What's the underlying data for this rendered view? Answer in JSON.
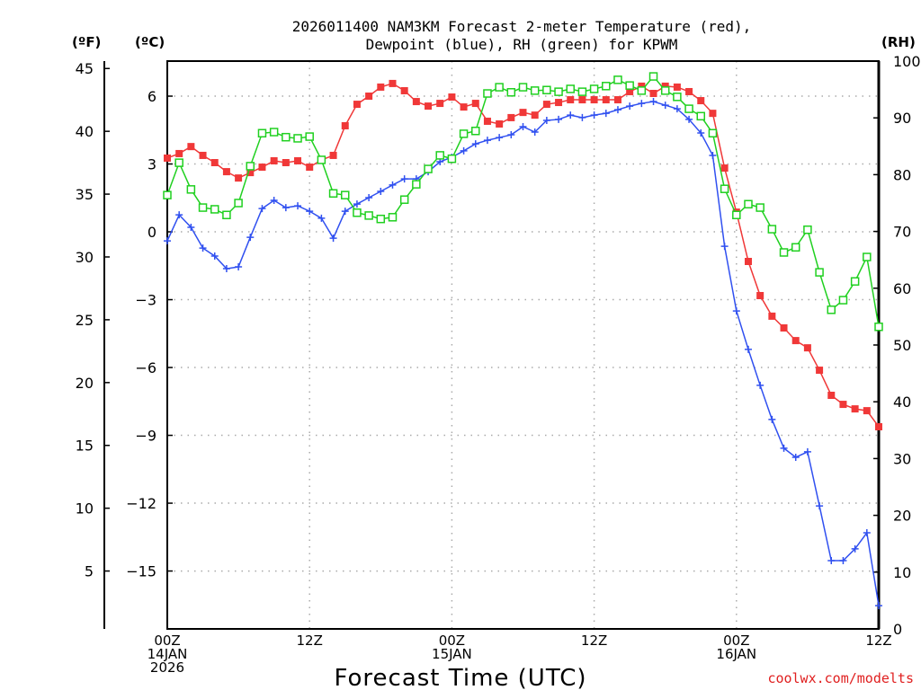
{
  "chart_data": {
    "type": "line",
    "title": [
      "2026011400 NAM3KM Forecast 2-meter Temperature (red),",
      "Dewpoint (blue), RH (green) for KPWM"
    ],
    "xlabel": "Forecast Time (UTC)",
    "units": {
      "fahrenheit": "(ºF)",
      "celsius": "(ºC)",
      "rh": "(RH)"
    },
    "x_hours": [
      0,
      1,
      2,
      3,
      4,
      5,
      6,
      7,
      8,
      9,
      10,
      11,
      12,
      13,
      14,
      15,
      16,
      17,
      18,
      19,
      20,
      21,
      22,
      23,
      24,
      25,
      26,
      27,
      28,
      29,
      30,
      31,
      32,
      33,
      34,
      35,
      36,
      37,
      38,
      39,
      40,
      41,
      42,
      43,
      44,
      45,
      46,
      47,
      48,
      49,
      50,
      51,
      52,
      53,
      54,
      55,
      56,
      57,
      58,
      59,
      60
    ],
    "xlim": [
      0,
      60
    ],
    "x_ticks": [
      {
        "hour": 0,
        "lines": [
          "00Z",
          "14JAN",
          "2026"
        ]
      },
      {
        "hour": 12,
        "lines": [
          "12Z"
        ]
      },
      {
        "hour": 24,
        "lines": [
          "00Z",
          "15JAN"
        ]
      },
      {
        "hour": 36,
        "lines": [
          "12Z"
        ]
      },
      {
        "hour": 48,
        "lines": [
          "00Z",
          "16JAN"
        ]
      },
      {
        "hour": 60,
        "lines": [
          "12Z"
        ]
      }
    ],
    "celsius_ticks": [
      "6",
      "3",
      "0",
      "−3",
      "−6",
      "−9",
      "−12",
      "−15"
    ],
    "celsius_tick_values": [
      6,
      3,
      0,
      -3,
      -6,
      -9,
      -12,
      -15
    ],
    "celsius_lim": [
      -17.56,
      7.55
    ],
    "fahrenheit_ticks": [
      "45",
      "40",
      "35",
      "30",
      "25",
      "20",
      "15",
      "10",
      "5"
    ],
    "fahrenheit_tick_values": [
      45,
      40,
      35,
      30,
      25,
      20,
      15,
      10,
      5
    ],
    "rh_ticks": [
      "100",
      "90",
      "80",
      "70",
      "60",
      "50",
      "40",
      "30",
      "20",
      "10",
      "0"
    ],
    "rh_tick_values": [
      100,
      90,
      80,
      70,
      60,
      50,
      40,
      30,
      20,
      10,
      0
    ],
    "rh_lim": [
      0,
      100
    ],
    "grid": true,
    "series": [
      {
        "name": "Temperature",
        "axis": "celsius",
        "color": "#f03838",
        "marker": "filled-square",
        "values": [
          3.26,
          3.46,
          3.77,
          3.38,
          3.06,
          2.66,
          2.38,
          2.62,
          2.86,
          3.14,
          3.06,
          3.14,
          2.86,
          3.18,
          3.38,
          4.69,
          5.64,
          6.0,
          6.4,
          6.56,
          6.24,
          5.76,
          5.56,
          5.68,
          5.96,
          5.52,
          5.68,
          4.89,
          4.77,
          5.05,
          5.28,
          5.16,
          5.64,
          5.72,
          5.84,
          5.84,
          5.84,
          5.84,
          5.84,
          6.2,
          6.44,
          6.12,
          6.44,
          6.4,
          6.2,
          5.8,
          5.24,
          2.82,
          0.87,
          -1.31,
          -2.82,
          -3.73,
          -4.25,
          -4.81,
          -5.13,
          -6.12,
          -7.23,
          -7.63,
          -7.83,
          -7.91,
          -8.62
        ]
      },
      {
        "name": "Dewpoint",
        "axis": "celsius",
        "color": "#3050f0",
        "marker": "plus",
        "values": [
          -0.4,
          0.75,
          0.2,
          -0.72,
          -1.07,
          -1.63,
          -1.55,
          -0.24,
          1.03,
          1.39,
          1.07,
          1.15,
          0.91,
          0.6,
          -0.28,
          0.91,
          1.23,
          1.51,
          1.79,
          2.07,
          2.34,
          2.34,
          2.66,
          3.1,
          3.3,
          3.58,
          3.89,
          4.05,
          4.17,
          4.29,
          4.65,
          4.41,
          4.93,
          4.97,
          5.16,
          5.05,
          5.16,
          5.24,
          5.4,
          5.56,
          5.68,
          5.76,
          5.6,
          5.44,
          4.97,
          4.37,
          3.38,
          -0.64,
          -3.5,
          -5.2,
          -6.79,
          -8.3,
          -9.57,
          -9.97,
          -9.73,
          -12.12,
          -14.54,
          -14.54,
          -14.02,
          -13.31,
          -16.53
        ]
      },
      {
        "name": "RH",
        "axis": "rh",
        "color": "#20d020",
        "marker": "open-square",
        "values": [
          76.4,
          82.1,
          77.4,
          74.2,
          73.9,
          72.9,
          75.0,
          81.5,
          87.3,
          87.5,
          86.6,
          86.4,
          86.7,
          82.6,
          76.7,
          76.4,
          73.3,
          72.8,
          72.2,
          72.5,
          75.6,
          78.3,
          81.0,
          83.4,
          82.8,
          87.2,
          87.7,
          94.3,
          95.4,
          94.5,
          95.4,
          94.8,
          94.9,
          94.6,
          95.1,
          94.6,
          95.1,
          95.6,
          96.7,
          95.7,
          94.8,
          97.3,
          94.8,
          93.7,
          91.6,
          90.3,
          87.3,
          77.5,
          72.9,
          74.8,
          74.2,
          70.4,
          66.3,
          67.2,
          70.3,
          62.8,
          56.2,
          57.9,
          61.2,
          65.5,
          53.2
        ]
      }
    ]
  },
  "credit": "coolwx.com/modelts"
}
